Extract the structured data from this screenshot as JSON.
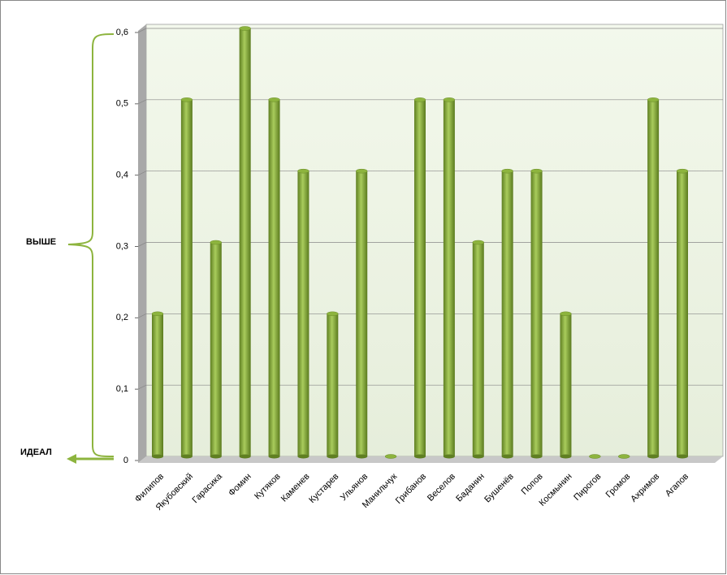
{
  "chart_data": {
    "type": "bar",
    "categories": [
      "Филипов",
      "Якубовский",
      "Гарасика",
      "Фомин",
      "Кутяков",
      "Каменев",
      "Кустарев",
      "Ульянов",
      "Манильчук",
      "Грибанов",
      "Веселов",
      "Баданин",
      "Бушенёв",
      "Попов",
      "Космынин",
      "Пирогов",
      "Громов",
      "Ахримов",
      "Агапов"
    ],
    "values": [
      0.2,
      0.5,
      0.3,
      0.6,
      0.5,
      0.4,
      0.2,
      0.4,
      0,
      0.5,
      0.5,
      0.3,
      0.4,
      0.4,
      0.2,
      0,
      0,
      0.5,
      0.4
    ],
    "color": "#8db43e",
    "ylim": [
      0,
      0.6
    ],
    "yticks": [
      0,
      {
        "value": 0.1,
        "label": "0,1"
      },
      {
        "value": 0.2,
        "label": "0,2"
      },
      {
        "value": 0.3,
        "label": "0,3"
      },
      {
        "value": 0.4,
        "label": "0,4"
      },
      {
        "value": 0.5,
        "label": "0,5"
      },
      {
        "value": 0.6,
        "label": "0,6"
      }
    ],
    "grid": true,
    "annotations": [
      "ВЫШЕ",
      "ИДЕАЛ"
    ]
  }
}
